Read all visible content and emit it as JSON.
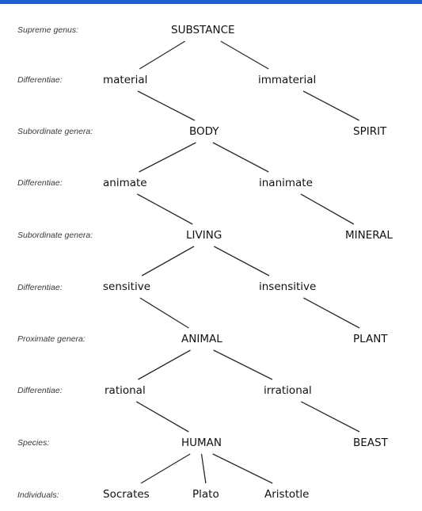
{
  "colors": {
    "top_bar": "#1f5fd1",
    "ink": "#111111",
    "label_ink": "#3a3a3a"
  },
  "rows": [
    {
      "label": "Supreme genus:"
    },
    {
      "label": "Differentiae:"
    },
    {
      "label": "Subordinate genera:"
    },
    {
      "label": "Differentiae:"
    },
    {
      "label": "Subordinate genera:"
    },
    {
      "label": "Differentiae:"
    },
    {
      "label": "Proximate genera:"
    },
    {
      "label": "Differentiae:"
    },
    {
      "label": "Species:"
    },
    {
      "label": "Individuals:"
    }
  ],
  "nodes": {
    "substance": "SUBSTANCE",
    "material": "material",
    "immaterial": "immaterial",
    "body": "BODY",
    "spirit": "SPIRIT",
    "animate": "animate",
    "inanimate": "inanimate",
    "living": "LIVING",
    "mineral": "MINERAL",
    "sensitive": "sensitive",
    "insensitive": "insensitive",
    "animal": "ANIMAL",
    "plant": "PLANT",
    "rational": "rational",
    "irrational": "irrational",
    "human": "HUMAN",
    "beast": "BEAST",
    "socrates": "Socrates",
    "plato": "Plato",
    "aristotle": "Aristotle"
  },
  "edges": [
    [
      "substance",
      "material"
    ],
    [
      "substance",
      "immaterial"
    ],
    [
      "material",
      "body"
    ],
    [
      "immaterial",
      "spirit"
    ],
    [
      "body",
      "animate"
    ],
    [
      "body",
      "inanimate"
    ],
    [
      "animate",
      "living"
    ],
    [
      "inanimate",
      "mineral"
    ],
    [
      "living",
      "sensitive"
    ],
    [
      "living",
      "insensitive"
    ],
    [
      "sensitive",
      "animal"
    ],
    [
      "insensitive",
      "plant"
    ],
    [
      "animal",
      "rational"
    ],
    [
      "animal",
      "irrational"
    ],
    [
      "rational",
      "human"
    ],
    [
      "irrational",
      "beast"
    ],
    [
      "human",
      "socrates"
    ],
    [
      "human",
      "plato"
    ],
    [
      "human",
      "aristotle"
    ]
  ]
}
